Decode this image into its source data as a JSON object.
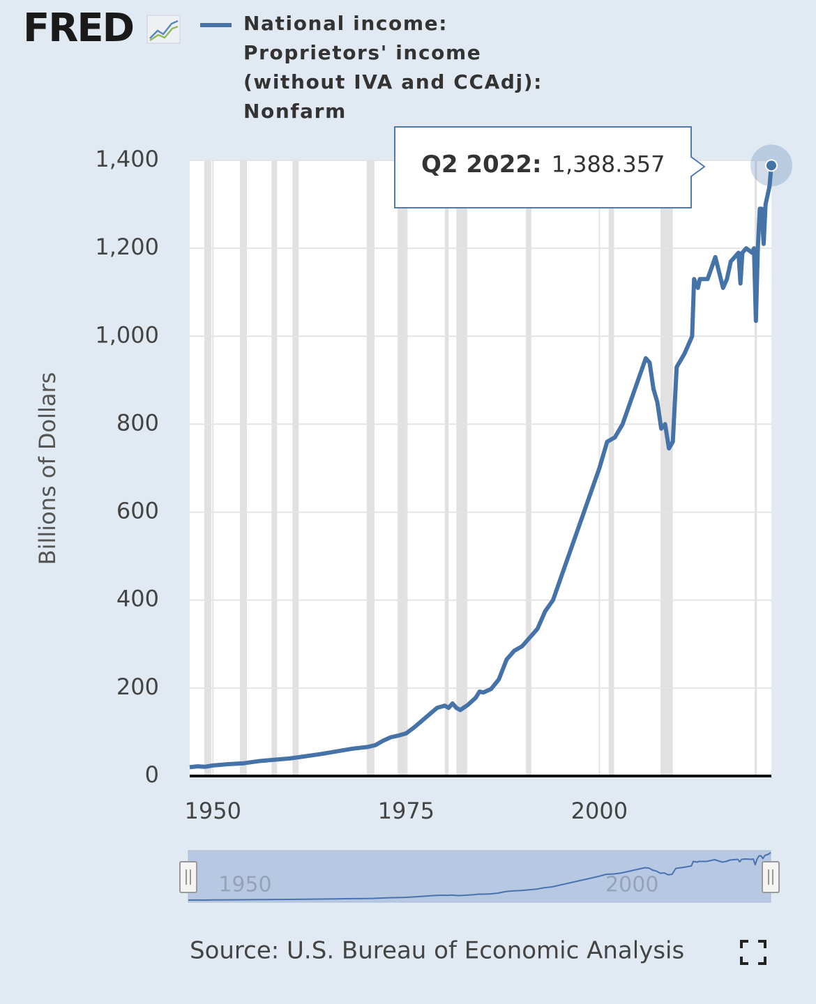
{
  "chart_data": {
    "type": "line",
    "logo": "FRED",
    "ylabel": "Billions of Dollars",
    "source": "Source: U.S. Bureau of Economic Analysis",
    "xlim": [
      1947,
      2022.25
    ],
    "xticks": [
      1950,
      1975,
      2000
    ],
    "ylim": [
      0,
      1400
    ],
    "yticks": [
      0,
      200,
      400,
      600,
      800,
      {
        "value": 1000,
        "label": "1,000"
      },
      {
        "value": 1200,
        "label": "1,200"
      },
      {
        "value": 1400,
        "label": "1,400"
      }
    ],
    "grid": true,
    "x": [
      1947,
      1948,
      1949,
      1950,
      1952,
      1954,
      1956,
      1958,
      1960,
      1962,
      1964,
      1966,
      1968,
      1970,
      1971,
      1972,
      1973,
      1974,
      1975,
      1976,
      1977,
      1978,
      1979,
      1980,
      1980.5,
      1981,
      1981.5,
      1982,
      1983,
      1984,
      1984.5,
      1985,
      1986,
      1987,
      1988,
      1989,
      1990,
      1991,
      1992,
      1993,
      1994,
      1995,
      1996,
      1997,
      1998,
      1999,
      2000,
      2001,
      2002,
      2003,
      2004,
      2005,
      2006,
      2006.5,
      2007,
      2007.5,
      2008,
      2008.5,
      2009,
      2009.5,
      2010,
      2011,
      2012,
      2012.25,
      2012.75,
      2013,
      2014,
      2015,
      2016,
      2016.5,
      2017,
      2018,
      2018.25,
      2018.5,
      2019,
      2019.75,
      2020,
      2020.25,
      2020.5,
      2020.75,
      2021,
      2021.25,
      2021.5,
      2022,
      2022.25
    ],
    "series": [
      {
        "name": "National income: Proprietors' income (without IVA and CCAdj): Nonfarm",
        "color": "#4572a7",
        "values": [
          20,
          22,
          21,
          24,
          27,
          29,
          34,
          37,
          40,
          45,
          50,
          56,
          62,
          66,
          70,
          80,
          88,
          92,
          97,
          110,
          125,
          140,
          155,
          160,
          155,
          165,
          155,
          150,
          162,
          178,
          192,
          190,
          198,
          220,
          265,
          285,
          295,
          315,
          335,
          375,
          400,
          450,
          500,
          550,
          600,
          650,
          700,
          760,
          770,
          800,
          850,
          900,
          950,
          940,
          880,
          850,
          790,
          800,
          745,
          760,
          930,
          960,
          1000,
          1130,
          1110,
          1130,
          1130,
          1180,
          1110,
          1130,
          1170,
          1190,
          1120,
          1190,
          1200,
          1190,
          1200,
          1035,
          1200,
          1290,
          1290,
          1210,
          1300,
          1340,
          1388.357
        ]
      }
    ],
    "recessions": [
      [
        1948.9,
        1949.8
      ],
      [
        1953.5,
        1954.4
      ],
      [
        1957.6,
        1958.3
      ],
      [
        1960.3,
        1961.1
      ],
      [
        1969.9,
        1970.9
      ],
      [
        1973.9,
        1975.2
      ],
      [
        1980.0,
        1980.5
      ],
      [
        1981.5,
        1982.9
      ],
      [
        1990.5,
        1991.2
      ],
      [
        2001.2,
        2001.9
      ],
      [
        2007.9,
        2009.5
      ],
      [
        2020.1,
        2020.3
      ]
    ],
    "tooltip": {
      "date": "Q2 2022:",
      "value": {
        "value": 1388.357,
        "label": "1,388.357"
      }
    },
    "navigator": {
      "xticks": [
        1950,
        2000
      ]
    }
  }
}
